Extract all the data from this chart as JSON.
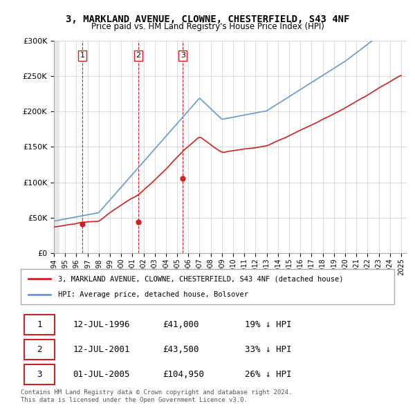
{
  "title": "3, MARKLAND AVENUE, CLOWNE, CHESTERFIELD, S43 4NF",
  "subtitle": "Price paid vs. HM Land Registry's House Price Index (HPI)",
  "ylim": [
    0,
    300000
  ],
  "yticks": [
    0,
    50000,
    100000,
    150000,
    200000,
    250000,
    300000
  ],
  "ytick_labels": [
    "£0",
    "£50K",
    "£100K",
    "£150K",
    "£200K",
    "£250K",
    "£300K"
  ],
  "hpi_color": "#6699cc",
  "price_color": "#cc2222",
  "dashed_line_color": "#cc2222",
  "sale_dates": [
    1996.53,
    2001.53,
    2005.5
  ],
  "sale_prices": [
    41000,
    43500,
    104950
  ],
  "sale_labels": [
    "1",
    "2",
    "3"
  ],
  "legend_label_red": "3, MARKLAND AVENUE, CLOWNE, CHESTERFIELD, S43 4NF (detached house)",
  "legend_label_blue": "HPI: Average price, detached house, Bolsover",
  "table_rows": [
    [
      "1",
      "12-JUL-1996",
      "£41,000",
      "19% ↓ HPI"
    ],
    [
      "2",
      "12-JUL-2001",
      "£43,500",
      "33% ↓ HPI"
    ],
    [
      "3",
      "01-JUL-2005",
      "£104,950",
      "26% ↓ HPI"
    ]
  ],
  "footer": "Contains HM Land Registry data © Crown copyright and database right 2024.\nThis data is licensed under the Open Government Licence v3.0.",
  "bg_hatch_color": "#dddddd",
  "xmin": 1994.0,
  "xmax": 2025.5
}
